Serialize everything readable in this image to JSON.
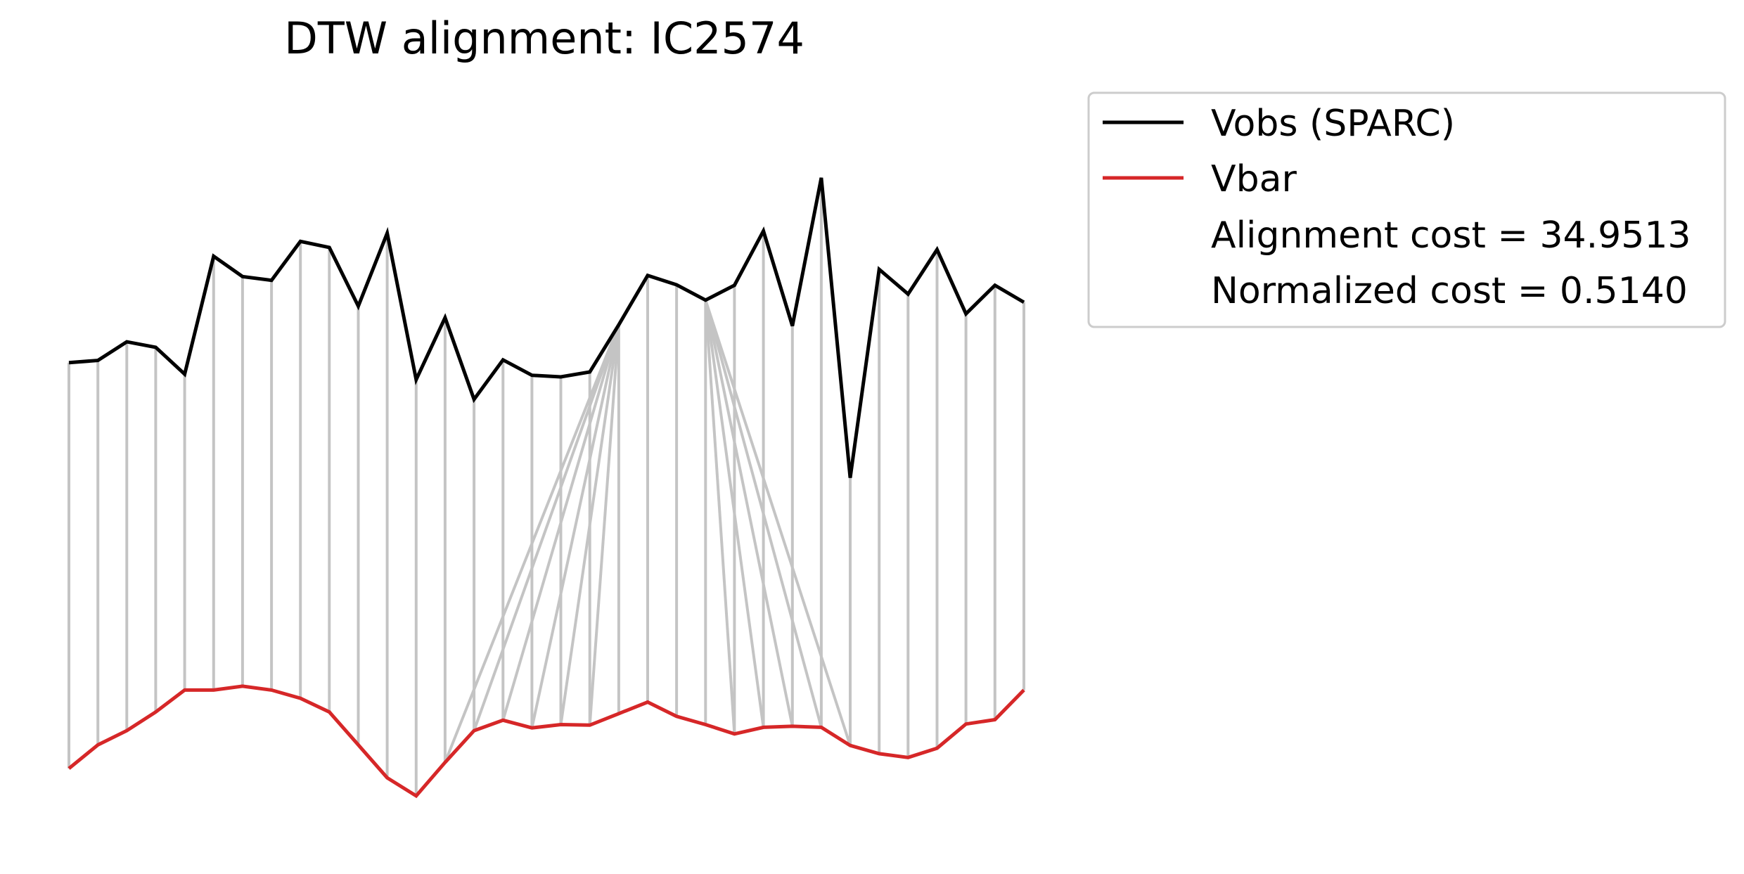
{
  "chart_data": {
    "type": "line",
    "title": "DTW alignment: IC2574",
    "xlabel": "",
    "ylabel": "",
    "axes_visible": false,
    "grid": false,
    "legend_placement": "outside-upper-right",
    "series": [
      {
        "name": "Vobs (SPARC)",
        "color": "#000000",
        "values": [
          4.26,
          4.3,
          4.64,
          4.54,
          4.05,
          6.2,
          5.83,
          5.76,
          6.47,
          6.36,
          5.29,
          6.62,
          3.95,
          5.08,
          3.59,
          4.31,
          4.03,
          4.0,
          4.09,
          4.95,
          5.85,
          5.68,
          5.4,
          5.67,
          6.66,
          4.93,
          7.63,
          2.16,
          5.96,
          5.51,
          6.32,
          5.15,
          5.67,
          5.36
        ]
      },
      {
        "name": "Vbar",
        "color": "#d62728",
        "values": [
          -3.14,
          -2.71,
          -2.45,
          -2.11,
          -1.71,
          -1.71,
          -1.64,
          -1.71,
          -1.86,
          -2.11,
          -2.71,
          -3.31,
          -3.64,
          -3.03,
          -2.45,
          -2.26,
          -2.4,
          -2.34,
          -2.35,
          -2.14,
          -1.93,
          -2.19,
          -2.34,
          -2.51,
          -2.39,
          -2.37,
          -2.39,
          -2.72,
          -2.87,
          -2.94,
          -2.77,
          -2.33,
          -2.25,
          -1.71
        ]
      }
    ],
    "alignment_pairs": [
      [
        0,
        0
      ],
      [
        1,
        1
      ],
      [
        2,
        2
      ],
      [
        3,
        3
      ],
      [
        4,
        4
      ],
      [
        5,
        5
      ],
      [
        6,
        6
      ],
      [
        7,
        7
      ],
      [
        8,
        8
      ],
      [
        9,
        9
      ],
      [
        10,
        10
      ],
      [
        11,
        11
      ],
      [
        12,
        12
      ],
      [
        13,
        13
      ],
      [
        14,
        14
      ],
      [
        15,
        15
      ],
      [
        16,
        16
      ],
      [
        17,
        17
      ],
      [
        18,
        18
      ],
      [
        19,
        13
      ],
      [
        19,
        14
      ],
      [
        19,
        15
      ],
      [
        19,
        16
      ],
      [
        19,
        17
      ],
      [
        19,
        18
      ],
      [
        19,
        19
      ],
      [
        20,
        20
      ],
      [
        21,
        21
      ],
      [
        22,
        22
      ],
      [
        22,
        23
      ],
      [
        22,
        24
      ],
      [
        22,
        25
      ],
      [
        22,
        26
      ],
      [
        22,
        27
      ],
      [
        23,
        23
      ],
      [
        24,
        24
      ],
      [
        25,
        25
      ],
      [
        26,
        26
      ],
      [
        27,
        27
      ],
      [
        28,
        28
      ],
      [
        29,
        29
      ],
      [
        30,
        30
      ],
      [
        31,
        31
      ],
      [
        32,
        32
      ],
      [
        33,
        33
      ]
    ],
    "connector_color": "#c4c4c4",
    "legend": {
      "entries": [
        "Vobs (SPARC)",
        "Vbar"
      ],
      "extra_lines": [
        "Alignment cost = 34.9513",
        "Normalized cost = 0.5140"
      ]
    }
  }
}
